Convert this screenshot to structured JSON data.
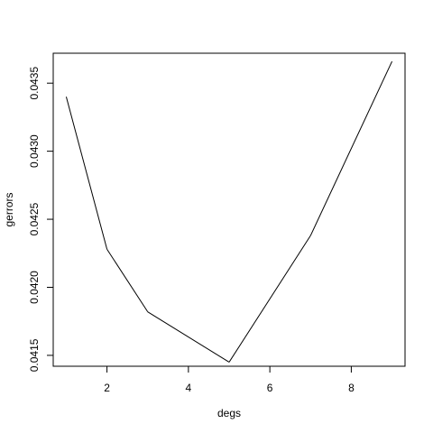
{
  "chart_data": {
    "type": "line",
    "title": "",
    "xlabel": "degs",
    "ylabel": "gerrors",
    "xlim": [
      0.68,
      9.32
    ],
    "ylim": [
      0.04142,
      0.04372
    ],
    "x_ticks": [
      2,
      4,
      6,
      8
    ],
    "x_tick_labels": [
      "2",
      "4",
      "6",
      "8"
    ],
    "y_ticks": [
      0.0415,
      0.042,
      0.0425,
      0.043,
      0.0435
    ],
    "y_tick_labels": [
      "0.0415",
      "0.0420",
      "0.0425",
      "0.0430",
      "0.0435"
    ],
    "grid": false,
    "line_color": "#000000",
    "series": [
      {
        "x": [
          1,
          2,
          3,
          5,
          7,
          9
        ],
        "values": [
          0.0434,
          0.04228,
          0.04182,
          0.04145,
          0.04238,
          0.04366
        ]
      }
    ]
  }
}
